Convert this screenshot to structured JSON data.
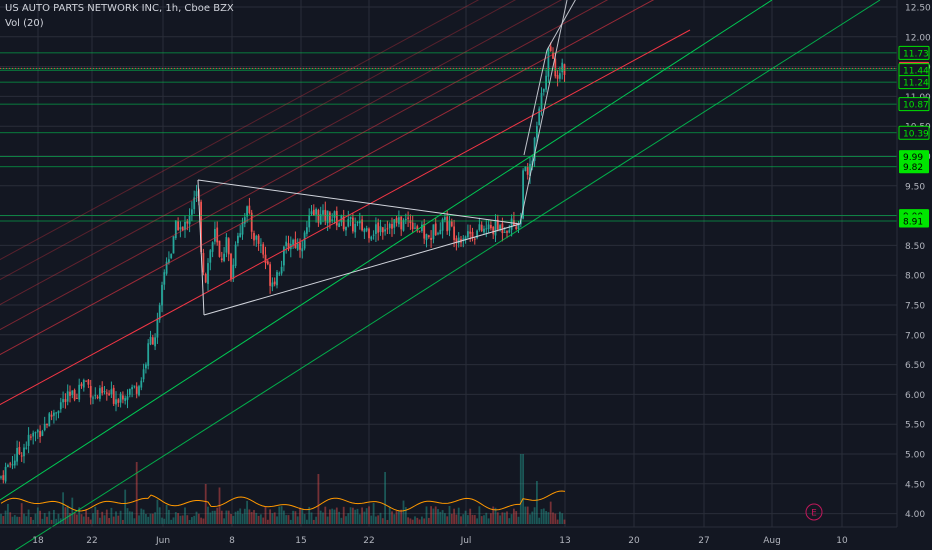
{
  "header": {
    "title": "US AUTO PARTS NETWORK INC, 1h, Cboe BZX",
    "volume_label": "Vol (20)"
  },
  "colors": {
    "background": "#131722",
    "grid": "#2a2e39",
    "axis_text": "#b2b5be",
    "candle_up": "#26a69a",
    "candle_down": "#ef5350",
    "volume_up": "rgba(38,166,154,0.45)",
    "volume_down": "rgba(239,83,80,0.45)",
    "volume_ma": "#ff9800",
    "green_line": "#00c853",
    "red_line": "#f23645",
    "white_line": "#d1d4dc",
    "badge_green": "#00e500",
    "badge_red": "#f23645",
    "earnings_marker": "#c2185b"
  },
  "chart_data": {
    "type": "candlestick",
    "symbol": "US AUTO PARTS NETWORK INC",
    "interval": "1h",
    "exchange": "Cboe BZX",
    "y_axis": {
      "ticks": [
        "12.50",
        "12.00",
        "11.50",
        "11.00",
        "10.50",
        "10.00",
        "9.50",
        "9.00",
        "8.50",
        "8.00",
        "7.50",
        "7.00",
        "6.50",
        "6.00",
        "5.50",
        "5.00",
        "4.50",
        "4.00"
      ],
      "range": [
        3.8,
        12.6
      ]
    },
    "x_axis": {
      "ticks": [
        "18",
        "22",
        "Jun",
        "8",
        "15",
        "22",
        "Jul",
        "13",
        "20",
        "27",
        "Aug",
        "10"
      ]
    },
    "price_labels": [
      {
        "value": "11.73",
        "style": "outline-green"
      },
      {
        "value": "11.47",
        "style": "current-red"
      },
      {
        "value": "11.44",
        "style": "outline-green"
      },
      {
        "value": "11.24",
        "style": "outline-green"
      },
      {
        "value": "10.87",
        "style": "outline-green"
      },
      {
        "value": "10.39",
        "style": "outline-green"
      },
      {
        "value": "9.99",
        "style": "filled-green"
      },
      {
        "value": "9.82",
        "style": "filled-green"
      },
      {
        "value": "9.00",
        "style": "filled-green"
      },
      {
        "value": "8.91",
        "style": "filled-green"
      }
    ],
    "horizontal_levels": [
      11.73,
      11.47,
      11.44,
      11.24,
      10.87,
      10.39,
      9.99,
      9.82,
      9.0,
      8.91
    ],
    "price_path": [
      [
        0,
        4.6
      ],
      [
        8,
        4.8
      ],
      [
        18,
        5.0
      ],
      [
        30,
        5.25
      ],
      [
        45,
        5.5
      ],
      [
        60,
        5.85
      ],
      [
        72,
        5.95
      ],
      [
        85,
        6.25
      ],
      [
        95,
        5.95
      ],
      [
        105,
        6.0
      ],
      [
        115,
        5.95
      ],
      [
        125,
        6.05
      ],
      [
        135,
        6.1
      ],
      [
        140,
        6.2
      ],
      [
        145,
        6.5
      ],
      [
        150,
        6.9
      ],
      [
        155,
        7.0
      ],
      [
        160,
        7.4
      ],
      [
        163,
        7.9
      ],
      [
        167,
        8.3
      ],
      [
        172,
        8.4
      ],
      [
        177,
        8.9
      ],
      [
        183,
        8.7
      ],
      [
        188,
        9.0
      ],
      [
        193,
        9.2
      ],
      [
        198,
        9.4
      ],
      [
        201,
        8.5
      ],
      [
        205,
        7.9
      ],
      [
        210,
        8.4
      ],
      [
        215,
        8.7
      ],
      [
        220,
        8.2
      ],
      [
        226,
        8.6
      ],
      [
        232,
        7.9
      ],
      [
        236,
        8.7
      ],
      [
        241,
        8.8
      ],
      [
        246,
        9.15
      ],
      [
        251,
        8.8
      ],
      [
        256,
        8.6
      ],
      [
        261,
        8.5
      ],
      [
        266,
        8.2
      ],
      [
        271,
        7.9
      ],
      [
        276,
        8.0
      ],
      [
        281,
        8.2
      ],
      [
        286,
        8.45
      ],
      [
        292,
        8.6
      ],
      [
        298,
        8.5
      ],
      [
        304,
        8.6
      ],
      [
        309,
        8.9
      ],
      [
        315,
        9.05
      ],
      [
        322,
        8.95
      ],
      [
        330,
        9.0
      ],
      [
        340,
        8.9
      ],
      [
        350,
        8.85
      ],
      [
        360,
        8.8
      ],
      [
        370,
        8.75
      ],
      [
        380,
        8.8
      ],
      [
        390,
        8.9
      ],
      [
        400,
        8.85
      ],
      [
        410,
        8.95
      ],
      [
        420,
        8.75
      ],
      [
        428,
        8.6
      ],
      [
        436,
        8.8
      ],
      [
        443,
        8.95
      ],
      [
        450,
        8.8
      ],
      [
        458,
        8.65
      ],
      [
        466,
        8.7
      ],
      [
        474,
        8.72
      ],
      [
        482,
        8.75
      ],
      [
        490,
        8.78
      ],
      [
        500,
        8.8
      ],
      [
        510,
        8.85
      ],
      [
        518,
        8.88
      ],
      [
        521,
        8.9
      ],
      [
        523,
        9.9
      ],
      [
        527,
        9.55
      ],
      [
        533,
        10.0
      ],
      [
        537,
        10.5
      ],
      [
        541,
        10.9
      ],
      [
        545,
        11.35
      ],
      [
        549,
        11.8
      ],
      [
        553,
        11.55
      ],
      [
        557,
        11.4
      ],
      [
        561,
        11.5
      ],
      [
        565,
        11.47
      ]
    ],
    "volume_spikes": [
      [
        137,
        62
      ],
      [
        205,
        40
      ],
      [
        318,
        50
      ],
      [
        386,
        52
      ],
      [
        522,
        70
      ],
      [
        537,
        43
      ]
    ],
    "annotations": [
      {
        "type": "symmetrical-triangle",
        "color": "white"
      },
      {
        "type": "rising-channel",
        "color": "red"
      },
      {
        "type": "rising-channel",
        "color": "green"
      },
      {
        "type": "breakout-wedge",
        "color": "white"
      },
      {
        "type": "earnings-marker",
        "label": "E"
      }
    ]
  }
}
